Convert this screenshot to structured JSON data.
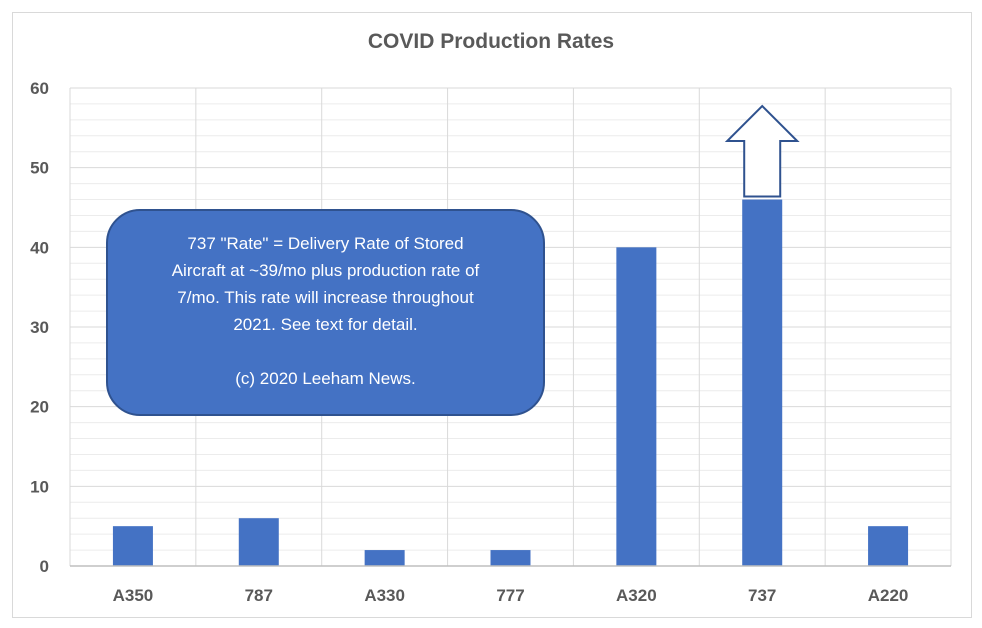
{
  "chart_data": {
    "type": "bar",
    "title": "COVID Production Rates",
    "xlabel": "",
    "ylabel": "",
    "categories": [
      "A350",
      "787",
      "A330",
      "777",
      "A320",
      "737",
      "A220"
    ],
    "values": [
      5,
      6,
      2,
      2,
      40,
      46,
      5
    ],
    "ylim": [
      0,
      60
    ],
    "yticks": [
      "0",
      "10",
      "20",
      "30",
      "40",
      "50",
      "60"
    ],
    "grid": "on",
    "legend": "none",
    "bar_color": "#4472c4",
    "annotation": {
      "lines": [
        "737 \"Rate\" = Delivery Rate of Stored",
        "Aircraft at ~39/mo plus production rate of",
        "7/mo. This rate will increase throughout",
        "2021. See text for detail."
      ],
      "credit": "(c) 2020 Leeham News.",
      "fill": "#4472c4",
      "border": "#2f528f"
    },
    "arrow": {
      "category": "737",
      "direction": "up",
      "color": "#2f528f"
    }
  }
}
